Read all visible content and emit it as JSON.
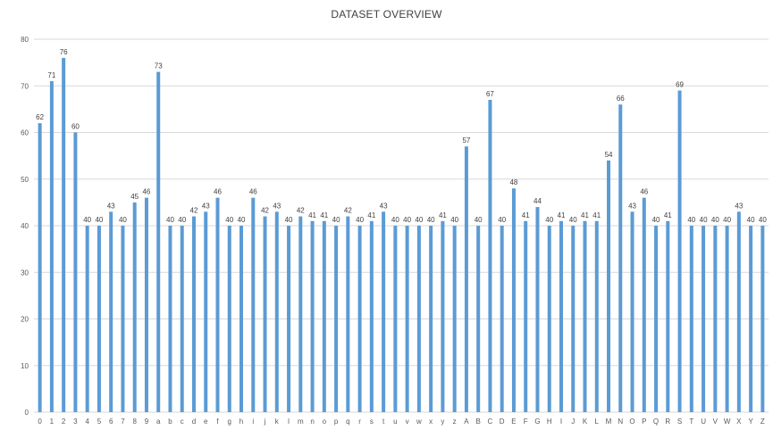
{
  "chart_data": {
    "type": "bar",
    "title": "DATASET OVERVIEW",
    "xlabel": "",
    "ylabel": "",
    "ylim": [
      0,
      80
    ],
    "yticks": [
      0,
      10,
      20,
      30,
      40,
      50,
      60,
      70,
      80
    ],
    "grid": true,
    "legend": "none",
    "bar_color": "#5b9bd5",
    "categories": [
      "0",
      "1",
      "2",
      "3",
      "4",
      "5",
      "6",
      "7",
      "8",
      "9",
      "a",
      "b",
      "c",
      "d",
      "e",
      "f",
      "g",
      "h",
      "i",
      "j",
      "k",
      "l",
      "m",
      "n",
      "o",
      "p",
      "q",
      "r",
      "s",
      "t",
      "u",
      "v",
      "w",
      "x",
      "y",
      "z",
      "A",
      "B",
      "C",
      "D",
      "E",
      "F",
      "G",
      "H",
      "I",
      "J",
      "K",
      "L",
      "M",
      "N",
      "O",
      "P",
      "Q",
      "R",
      "S",
      "T",
      "U",
      "V",
      "W",
      "X",
      "Y",
      "Z"
    ],
    "values": [
      62,
      71,
      76,
      60,
      40,
      40,
      43,
      40,
      45,
      46,
      73,
      40,
      40,
      42,
      43,
      46,
      40,
      40,
      46,
      42,
      43,
      40,
      42,
      41,
      41,
      40,
      42,
      40,
      41,
      43,
      40,
      40,
      40,
      40,
      41,
      40,
      57,
      40,
      67,
      40,
      48,
      41,
      44,
      40,
      41,
      40,
      41,
      41,
      54,
      66,
      43,
      46,
      40,
      41,
      69,
      40,
      40,
      40,
      40,
      43,
      40,
      40
    ]
  }
}
